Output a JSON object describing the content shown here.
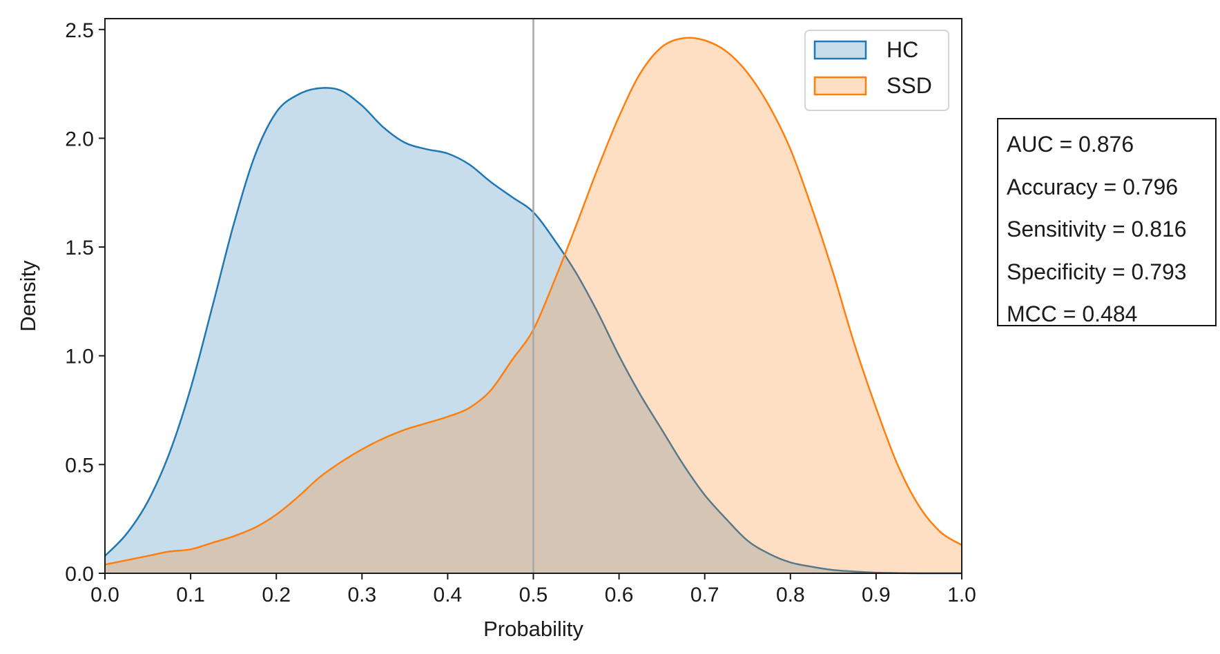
{
  "chart_data": {
    "type": "area",
    "title": "",
    "xlabel": "Probability",
    "ylabel": "Density",
    "xlim": [
      0.0,
      1.0
    ],
    "ylim": [
      0.0,
      2.55
    ],
    "x_ticks": [
      "0.0",
      "0.1",
      "0.2",
      "0.3",
      "0.4",
      "0.5",
      "0.6",
      "0.7",
      "0.8",
      "0.9",
      "1.0"
    ],
    "y_ticks": [
      "0.0",
      "0.5",
      "1.0",
      "1.5",
      "2.0",
      "2.5"
    ],
    "threshold_line": 0.5,
    "legend": {
      "position": "top-right",
      "entries": [
        "HC",
        "SSD"
      ]
    },
    "x": [
      0.0,
      0.025,
      0.05,
      0.075,
      0.1,
      0.125,
      0.15,
      0.175,
      0.2,
      0.225,
      0.25,
      0.275,
      0.3,
      0.325,
      0.35,
      0.375,
      0.4,
      0.425,
      0.45,
      0.475,
      0.5,
      0.525,
      0.55,
      0.575,
      0.6,
      0.625,
      0.65,
      0.675,
      0.7,
      0.725,
      0.75,
      0.775,
      0.8,
      0.825,
      0.85,
      0.875,
      0.9,
      0.925,
      0.95,
      0.975,
      1.0
    ],
    "series": [
      {
        "name": "HC",
        "color": "#1f77b4",
        "fill": "rgba(31,119,180,0.25)",
        "values": [
          0.08,
          0.18,
          0.33,
          0.55,
          0.85,
          1.22,
          1.6,
          1.92,
          2.12,
          2.2,
          2.23,
          2.22,
          2.15,
          2.05,
          1.98,
          1.95,
          1.93,
          1.88,
          1.8,
          1.73,
          1.66,
          1.53,
          1.38,
          1.2,
          1.0,
          0.82,
          0.66,
          0.5,
          0.36,
          0.25,
          0.15,
          0.09,
          0.05,
          0.03,
          0.015,
          0.008,
          0.003,
          0.001,
          0.0,
          0.0,
          0.0
        ]
      },
      {
        "name": "SSD",
        "color": "#ff7f0e",
        "fill": "rgba(255,127,14,0.25)",
        "values": [
          0.04,
          0.06,
          0.08,
          0.1,
          0.11,
          0.14,
          0.17,
          0.21,
          0.27,
          0.35,
          0.44,
          0.51,
          0.57,
          0.62,
          0.66,
          0.69,
          0.72,
          0.76,
          0.84,
          0.98,
          1.12,
          1.35,
          1.6,
          1.86,
          2.1,
          2.3,
          2.42,
          2.46,
          2.45,
          2.4,
          2.3,
          2.15,
          1.95,
          1.68,
          1.38,
          1.05,
          0.76,
          0.5,
          0.31,
          0.19,
          0.13
        ]
      }
    ]
  },
  "metrics": {
    "lines": [
      "AUC = 0.876",
      "Accuracy = 0.796",
      "Sensitivity = 0.816",
      "Specificity = 0.793",
      "MCC = 0.484"
    ]
  }
}
